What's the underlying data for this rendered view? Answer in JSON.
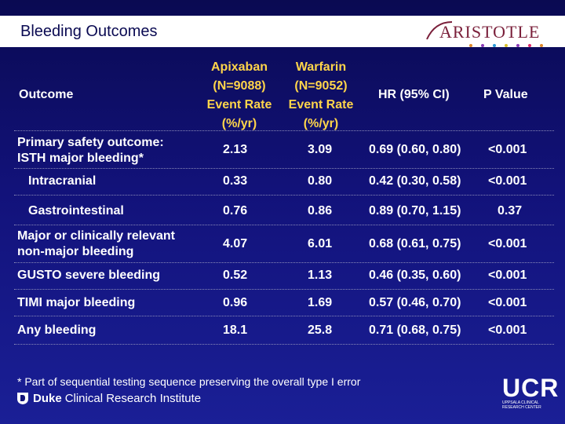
{
  "title": "Bleeding Outcomes",
  "logo_text": "ARISTOTLE",
  "dot_colors": [
    "#e08a2a",
    "#8a3ab8",
    "#2a9ad8",
    "#d8c02a",
    "#8a3ab8",
    "#e02a6a",
    "#e08a2a"
  ],
  "headers": {
    "outcome": "Outcome",
    "apixaban": [
      "Apixaban",
      "(N=9088)",
      "Event Rate",
      "(%/yr)"
    ],
    "warfarin": [
      "Warfarin",
      "(N=9052)",
      "Event Rate",
      "(%/yr)"
    ],
    "hr": "HR (95% CI)",
    "p": "P Value"
  },
  "rows": [
    {
      "outcome": "Primary safety outcome: ISTH major bleeding*",
      "apixaban": "2.13",
      "warfarin": "3.09",
      "hr": "0.69 (0.60, 0.80)",
      "p": "<0.001"
    },
    {
      "outcome": "Intracranial",
      "apixaban": "0.33",
      "warfarin": "0.80",
      "hr": "0.42 (0.30, 0.58)",
      "p": "<0.001"
    },
    {
      "outcome": "Gastrointestinal",
      "apixaban": "0.76",
      "warfarin": "0.86",
      "hr": "0.89 (0.70, 1.15)",
      "p": "0.37"
    },
    {
      "outcome": "Major or clinically relevant non-major bleeding",
      "apixaban": "4.07",
      "warfarin": "6.01",
      "hr": "0.68 (0.61, 0.75)",
      "p": "<0.001"
    },
    {
      "outcome": "GUSTO severe bleeding",
      "apixaban": "0.52",
      "warfarin": "1.13",
      "hr": "0.46 (0.35, 0.60)",
      "p": "<0.001"
    },
    {
      "outcome": "TIMI major bleeding",
      "apixaban": "0.96",
      "warfarin": "1.69",
      "hr": "0.57 (0.46, 0.70)",
      "p": "<0.001"
    },
    {
      "outcome": "Any bleeding",
      "apixaban": "18.1",
      "warfarin": "25.8",
      "hr": "0.71 (0.68, 0.75)",
      "p": "<0.001"
    }
  ],
  "footnote": "* Part of sequential testing sequence preserving the overall type I error",
  "duke": {
    "bold": "Duke",
    "rest": "Clinical Research Institute"
  },
  "ucr": {
    "big": "UCR",
    "small": [
      "UPPSALA CLINICAL",
      "RESEARCH CENTER"
    ]
  }
}
